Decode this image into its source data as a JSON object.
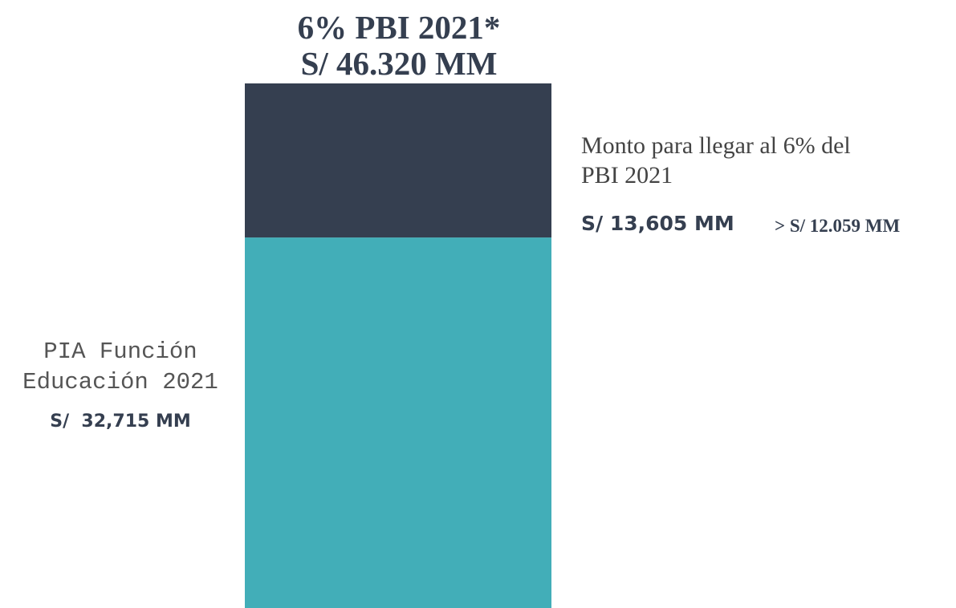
{
  "chart_data": {
    "type": "bar",
    "title": "6% PBI 2021*",
    "subtitle": "S/ 46.320 MM",
    "categories": [
      null
    ],
    "ylim": [
      0,
      46320
    ],
    "series": [
      {
        "name": "PIA Función Educación 2021",
        "color": "#42aeb8",
        "values": [
          32715
        ],
        "value_labels": [
          "S/  32,715 MM"
        ]
      },
      {
        "name": "Monto para llegar al 6% del PBI 2021",
        "color": "#353f50",
        "values": [
          13605
        ],
        "value_labels": [
          "S/ 13,605 MM"
        ]
      }
    ],
    "annotation": "> S/ 12.059 MM"
  }
}
